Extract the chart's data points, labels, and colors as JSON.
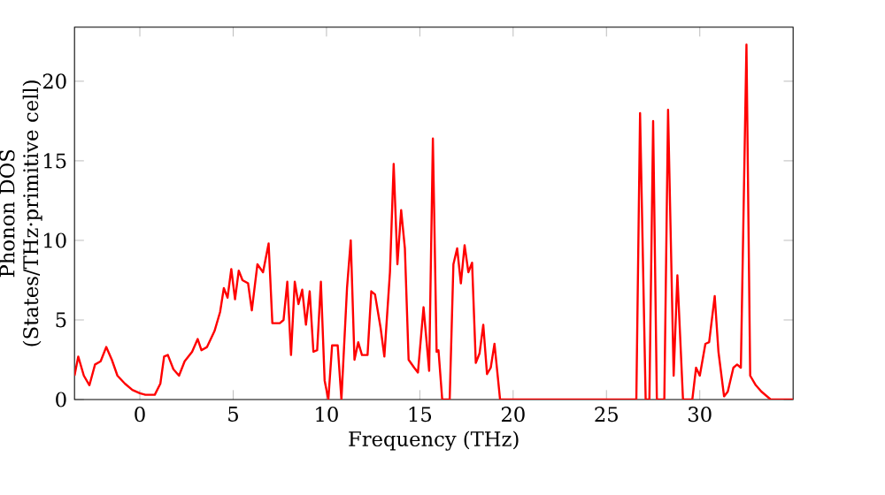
{
  "chart_data": {
    "type": "line",
    "xlabel": "Frequency (THz)",
    "ylabel": "Phonon DOS (States/THz·primitive cell)",
    "xlim": [
      -3.5,
      35
    ],
    "ylim": [
      0,
      23.4
    ],
    "xticks": [
      0,
      5,
      10,
      15,
      20,
      25,
      30
    ],
    "yticks": [
      0,
      5,
      10,
      15,
      20
    ],
    "grid": false,
    "marker": "none",
    "line_style": "solid",
    "series": [
      {
        "color": "#ff0000",
        "x": [
          -3.5,
          -3.3,
          -3.0,
          -2.7,
          -2.4,
          -2.1,
          -1.8,
          -1.5,
          -1.2,
          -0.8,
          -0.4,
          0,
          0.3,
          0.8,
          1.1,
          1.3,
          1.5,
          1.8,
          2.1,
          2.4,
          2.8,
          3.1,
          3.3,
          3.6,
          4.0,
          4.3,
          4.5,
          4.7,
          4.9,
          5.1,
          5.3,
          5.5,
          5.8,
          6.0,
          6.3,
          6.6,
          6.9,
          7.1,
          7.5,
          7.7,
          7.9,
          8.1,
          8.3,
          8.5,
          8.7,
          8.9,
          9.1,
          9.3,
          9.5,
          9.7,
          9.9,
          10.1,
          10.3,
          10.6,
          10.8,
          11.1,
          11.3,
          11.5,
          11.7,
          11.9,
          12.2,
          12.4,
          12.6,
          12.9,
          13.1,
          13.4,
          13.6,
          13.8,
          14.0,
          14.2,
          14.4,
          14.7,
          14.9,
          15.2,
          15.5,
          15.7,
          15.9,
          16.0,
          16.2,
          16.6,
          16.8,
          17.0,
          17.2,
          17.4,
          17.6,
          17.8,
          18.0,
          18.2,
          18.4,
          18.6,
          18.8,
          19.0,
          19.3,
          26.6,
          26.8,
          27.1,
          27.3,
          27.5,
          27.7,
          28.1,
          28.3,
          28.6,
          28.8,
          29.1,
          29.6,
          29.8,
          30.0,
          30.3,
          30.5,
          30.8,
          31.0,
          31.3,
          31.5,
          31.8,
          32.0,
          32.2,
          32.5,
          32.7,
          33.0,
          33.3,
          33.8,
          35
        ],
        "values": [
          1.5,
          2.7,
          1.5,
          0.9,
          2.2,
          2.4,
          3.3,
          2.5,
          1.5,
          1.0,
          0.6,
          0.4,
          0.3,
          0.3,
          1.0,
          2.7,
          2.8,
          1.9,
          1.5,
          2.4,
          3.0,
          3.8,
          3.1,
          3.3,
          4.3,
          5.5,
          7.0,
          6.4,
          8.2,
          6.3,
          8.1,
          7.5,
          7.3,
          5.6,
          8.5,
          8.0,
          9.8,
          4.8,
          4.8,
          5.0,
          7.4,
          2.8,
          7.4,
          6.0,
          6.9,
          4.7,
          6.8,
          3.0,
          3.1,
          7.4,
          1.2,
          0,
          3.4,
          3.4,
          0,
          7.0,
          10.0,
          2.5,
          3.6,
          2.8,
          2.8,
          6.8,
          6.6,
          4.5,
          2.7,
          8.0,
          14.8,
          8.5,
          11.9,
          9.5,
          2.5,
          2.0,
          1.7,
          5.8,
          1.8,
          16.4,
          3.0,
          3.1,
          0,
          0,
          8.5,
          9.5,
          7.3,
          9.7,
          8.0,
          8.6,
          2.3,
          2.9,
          4.7,
          1.6,
          2.0,
          3.5,
          0,
          0,
          18.0,
          0,
          0,
          17.5,
          0,
          0,
          18.2,
          1.5,
          7.8,
          0,
          0,
          2.0,
          1.5,
          3.5,
          3.6,
          6.5,
          3.0,
          0.2,
          0.5,
          2.0,
          2.2,
          2.0,
          22.3,
          1.5,
          0.9,
          0.5,
          0,
          0
        ]
      }
    ]
  }
}
